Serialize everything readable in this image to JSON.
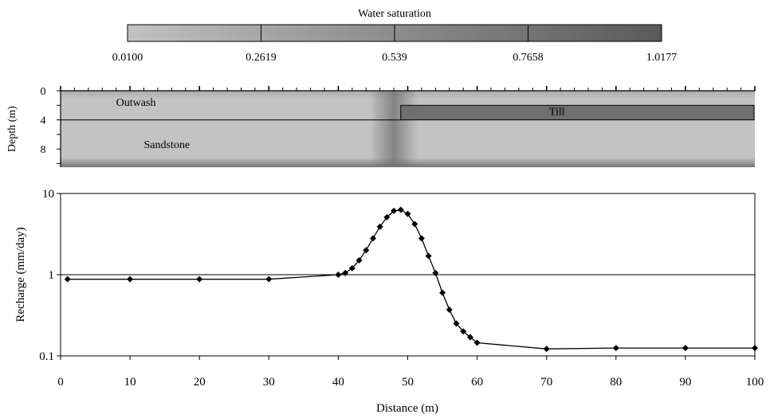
{
  "chart_data": [
    {
      "type": "heatmap",
      "colorbar": {
        "title": "Water saturation",
        "ticks": [
          "0.0100",
          "0.2619",
          "0.539",
          "0.7658",
          "1.0177"
        ],
        "tick_values": [
          0.01,
          0.2619,
          0.539,
          0.7658,
          1.0177
        ],
        "colors": [
          "#c2c2c2",
          "#a6a6a6",
          "#8c8c8c",
          "#737373",
          "#5a5a5a"
        ]
      },
      "ylabel": "Depth (m)",
      "yticks": [
        0,
        4,
        8
      ],
      "ylim": [
        0,
        10.5
      ],
      "xlim": [
        0,
        100
      ],
      "zones": [
        {
          "label": "Outwash",
          "x": [
            0,
            100
          ],
          "depth": [
            0,
            4
          ]
        },
        {
          "label": "Till",
          "x": [
            49,
            100
          ],
          "depth": [
            2,
            4
          ]
        },
        {
          "label": "Sandstone",
          "x": [
            0,
            100
          ],
          "depth": [
            4,
            10.5
          ]
        }
      ],
      "saturation_background": 0.3,
      "saturation_till": 0.9,
      "saturation_plume_center_x": 48
    },
    {
      "type": "line",
      "xlabel": "Distance (m)",
      "ylabel": "Recharge (mm/day)",
      "xlim": [
        0,
        100
      ],
      "ylim": [
        0.1,
        10
      ],
      "log_y": true,
      "xticks": [
        0,
        10,
        20,
        30,
        40,
        50,
        60,
        70,
        80,
        90,
        100
      ],
      "yticks": [
        0.1,
        1,
        10
      ],
      "ytick_labels": [
        "0.1",
        "1",
        "10"
      ],
      "reference_line_y": 1,
      "series": [
        {
          "marker": "diamond",
          "x": [
            1,
            10,
            20,
            30,
            40,
            41,
            42,
            43,
            44,
            45,
            46,
            47,
            48,
            49,
            50,
            51,
            52,
            53,
            54,
            55,
            56,
            57,
            58,
            59,
            60,
            70,
            80,
            90,
            100
          ],
          "y": [
            0.88,
            0.88,
            0.88,
            0.88,
            1.0,
            1.05,
            1.2,
            1.5,
            2.0,
            2.8,
            3.9,
            5.1,
            6.1,
            6.3,
            5.6,
            4.2,
            2.8,
            1.7,
            1.05,
            0.6,
            0.37,
            0.25,
            0.2,
            0.17,
            0.145,
            0.122,
            0.125,
            0.125,
            0.125
          ]
        }
      ]
    }
  ]
}
